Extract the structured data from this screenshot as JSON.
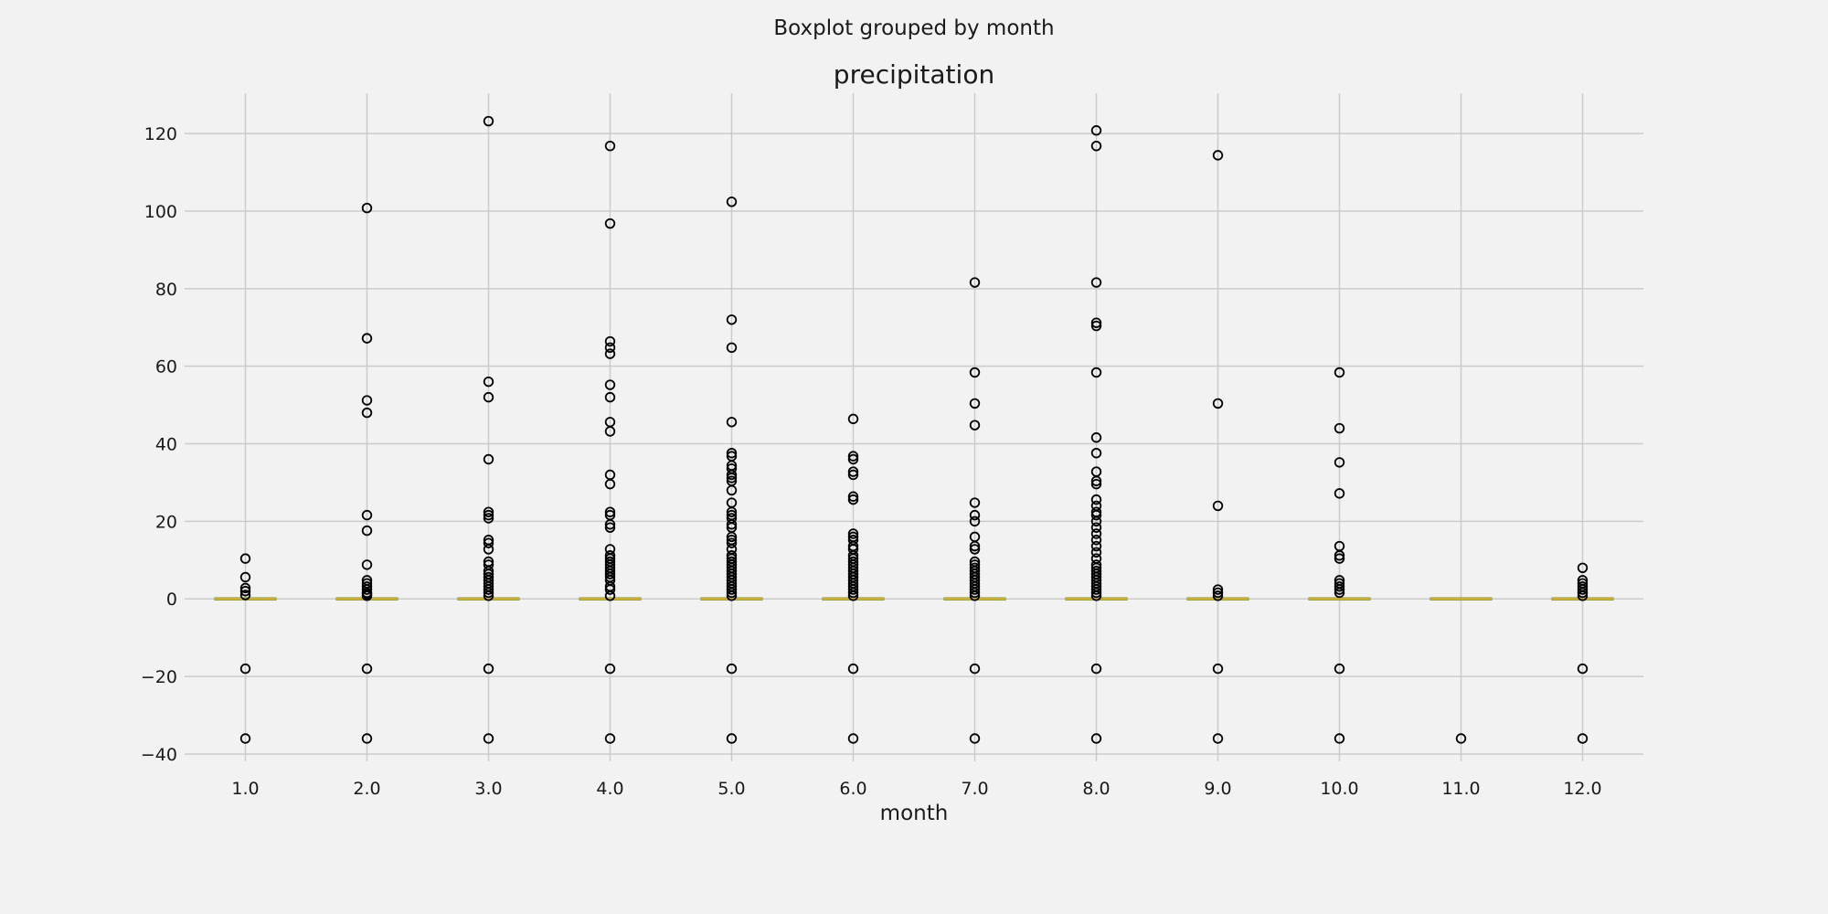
{
  "chart_data": {
    "type": "boxplot",
    "suptitle": "Boxplot grouped by month",
    "title": "precipitation",
    "xlabel": "month",
    "ylabel": "",
    "categories": [
      "1.0",
      "2.0",
      "3.0",
      "4.0",
      "5.0",
      "6.0",
      "7.0",
      "8.0",
      "9.0",
      "10.0",
      "11.0",
      "12.0"
    ],
    "y_ticks": [
      -40,
      -20,
      0,
      20,
      40,
      60,
      80,
      100,
      120
    ],
    "y_tick_labels": [
      "−40",
      "−20",
      "0",
      "20",
      "40",
      "60",
      "80",
      "100",
      "120"
    ],
    "ylim": [
      -41.9,
      130.4
    ],
    "grid": true,
    "colors": {
      "background": "#f2f2f2",
      "grid": "#cbcbcb",
      "box": "#8a9a3a",
      "median": "#d9b23b",
      "flier": "#000000"
    },
    "series": [
      {
        "category": "1.0",
        "median": 0,
        "q1": 0,
        "q3": 0,
        "whisker_low": 0,
        "whisker_high": 0,
        "fliers": [
          10.4,
          5.6,
          2.8,
          2.0,
          1.0,
          -18,
          -36
        ]
      },
      {
        "category": "2.0",
        "median": 0,
        "q1": 0,
        "q3": 0,
        "whisker_low": 0,
        "whisker_high": 0,
        "fliers": [
          100.8,
          67.2,
          51.2,
          48.0,
          21.6,
          17.6,
          8.8,
          4.8,
          4.0,
          3.2,
          2.4,
          1.6,
          1.2,
          0.8,
          -18,
          -36
        ]
      },
      {
        "category": "3.0",
        "median": 0,
        "q1": 0,
        "q3": 0,
        "whisker_low": 0,
        "whisker_high": 0,
        "fliers": [
          123.2,
          56.0,
          52.0,
          36.0,
          22.4,
          21.6,
          20.8,
          15.2,
          14.4,
          12.8,
          9.6,
          8.8,
          7.2,
          6.4,
          5.6,
          4.8,
          4.0,
          3.2,
          2.4,
          1.6,
          0.8,
          -18,
          -36
        ]
      },
      {
        "category": "4.0",
        "median": 0,
        "q1": 0,
        "q3": 0,
        "whisker_low": 0,
        "whisker_high": 0,
        "fliers": [
          116.8,
          96.8,
          66.4,
          64.8,
          63.2,
          55.2,
          52.0,
          45.6,
          43.2,
          32.0,
          29.6,
          22.4,
          21.6,
          19.2,
          18.4,
          12.8,
          11.2,
          10.4,
          9.6,
          8.8,
          8.0,
          7.2,
          6.4,
          5.6,
          4.8,
          3.2,
          2.4,
          0.8,
          -18,
          -36
        ]
      },
      {
        "category": "5.0",
        "median": 0,
        "q1": 0,
        "q3": 0,
        "whisker_low": 0,
        "whisker_high": 0,
        "fliers": [
          102.4,
          72.0,
          64.8,
          45.6,
          37.6,
          36.8,
          34.4,
          33.6,
          32.0,
          31.2,
          30.4,
          28.0,
          24.8,
          22.4,
          21.6,
          20.8,
          19.2,
          18.4,
          16.0,
          15.2,
          14.4,
          12.8,
          11.2,
          10.4,
          9.6,
          8.8,
          8.0,
          7.2,
          6.4,
          5.6,
          4.8,
          4.0,
          3.2,
          2.4,
          1.6,
          0.8,
          -18,
          -36
        ]
      },
      {
        "category": "6.0",
        "median": 0,
        "q1": 0,
        "q3": 0,
        "whisker_low": 0,
        "whisker_high": 0,
        "fliers": [
          46.4,
          36.8,
          36.0,
          32.8,
          32.0,
          26.4,
          25.6,
          16.8,
          16.0,
          15.2,
          13.6,
          12.8,
          11.2,
          10.4,
          9.6,
          8.8,
          8.0,
          7.2,
          6.4,
          5.6,
          4.8,
          4.0,
          3.2,
          2.4,
          1.6,
          0.8,
          -18,
          -36
        ]
      },
      {
        "category": "7.0",
        "median": 0,
        "q1": 0,
        "q3": 0,
        "whisker_low": 0,
        "whisker_high": 0,
        "fliers": [
          81.6,
          58.4,
          50.4,
          44.8,
          24.8,
          21.6,
          20.0,
          16.0,
          13.6,
          12.8,
          9.6,
          8.8,
          8.0,
          7.2,
          6.4,
          5.6,
          4.8,
          4.0,
          3.2,
          2.4,
          1.6,
          0.8,
          -18,
          -36
        ]
      },
      {
        "category": "8.0",
        "median": 0,
        "q1": 0,
        "q3": 0,
        "whisker_low": 0,
        "whisker_high": 0,
        "fliers": [
          120.8,
          116.8,
          81.6,
          71.2,
          70.4,
          58.4,
          41.6,
          37.6,
          32.8,
          30.4,
          29.6,
          25.6,
          24.0,
          22.4,
          21.6,
          20.0,
          18.4,
          16.8,
          15.2,
          13.6,
          12.0,
          10.4,
          8.8,
          8.0,
          7.2,
          6.4,
          5.6,
          4.8,
          4.0,
          3.2,
          2.4,
          1.6,
          0.8,
          -18,
          -36
        ]
      },
      {
        "category": "9.0",
        "median": 0,
        "q1": 0,
        "q3": 0,
        "whisker_low": 0,
        "whisker_high": 0,
        "fliers": [
          114.4,
          50.4,
          24.0,
          2.4,
          1.6,
          0.8,
          -18,
          -36
        ]
      },
      {
        "category": "10.0",
        "median": 0,
        "q1": 0,
        "q3": 0,
        "whisker_low": 0,
        "whisker_high": 0,
        "fliers": [
          58.4,
          44.0,
          35.2,
          27.2,
          13.6,
          11.2,
          10.4,
          4.8,
          4.0,
          3.2,
          2.4,
          1.6,
          -18,
          -36
        ]
      },
      {
        "category": "11.0",
        "median": 0,
        "q1": 0,
        "q3": 0,
        "whisker_low": 0,
        "whisker_high": 0,
        "fliers": [
          -36
        ]
      },
      {
        "category": "12.0",
        "median": 0,
        "q1": 0,
        "q3": 0,
        "whisker_low": 0,
        "whisker_high": 0,
        "fliers": [
          8.0,
          4.8,
          4.0,
          3.2,
          2.4,
          1.6,
          0.8,
          -18,
          -36
        ]
      }
    ]
  }
}
